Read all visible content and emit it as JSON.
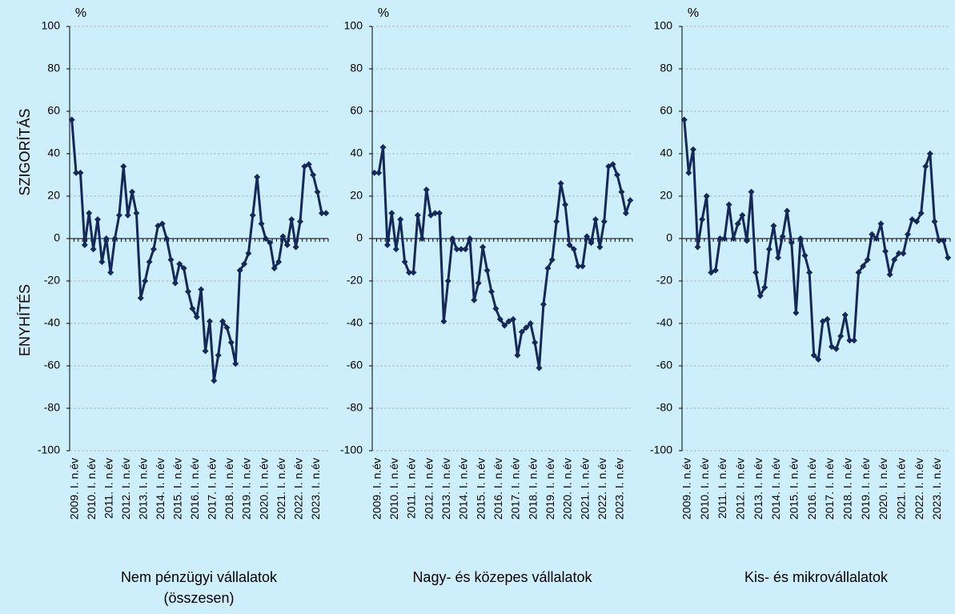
{
  "chart_data": [
    {
      "type": "line",
      "title": [
        "Nem pénzügyi vállalatok",
        "(összesen)"
      ],
      "y_unit": "%",
      "ylabel_top": "SZIGORÍTÁS",
      "ylabel_bottom": "ENYHÍTÉS",
      "categories": [
        "2009. I. n.év",
        null,
        null,
        null,
        "2010. I. n.év",
        null,
        null,
        null,
        "2011. I. n.év",
        null,
        null,
        null,
        "2012. I. n.év",
        null,
        null,
        null,
        "2013. I. n.év",
        null,
        null,
        null,
        "2014. I. n.év",
        null,
        null,
        null,
        "2015. I. n.év",
        null,
        null,
        null,
        "2016. I. n.év",
        null,
        null,
        null,
        "2017. I. n.év",
        null,
        null,
        null,
        "2018. I. n.év",
        null,
        null,
        null,
        "2019. I. n.év",
        null,
        null,
        null,
        "2020. I. n.év",
        null,
        null,
        null,
        "2021. I. n.év",
        null,
        null,
        null,
        "2022. I. n.év",
        null,
        null,
        null,
        "2023. I. n.év",
        null,
        null,
        null
      ],
      "values": [
        56,
        31,
        31,
        -3,
        12,
        -5,
        9,
        -11,
        0,
        -16,
        0,
        11,
        34,
        11,
        22,
        12,
        -28,
        -20,
        -11,
        -5,
        6,
        7,
        0,
        -10,
        -21,
        -12,
        -14,
        -25,
        -33,
        -37,
        -24,
        -53,
        -39,
        -67,
        -55,
        -39,
        -42,
        -49,
        -59,
        -15,
        -12,
        -7,
        11,
        29,
        7,
        0,
        -2,
        -14,
        -11,
        1,
        -3,
        9,
        -4,
        8,
        34,
        35,
        30,
        22,
        12,
        12
      ],
      "color": "#14285a",
      "ylim": [
        -100,
        100
      ],
      "yticks": [
        -100,
        -80,
        -60,
        -40,
        -20,
        0,
        20,
        40,
        60,
        80,
        100
      ],
      "grid": true
    },
    {
      "type": "line",
      "title": [
        "Nagy- és közepes vállalatok"
      ],
      "y_unit": "%",
      "categories": [
        "2009. I. n.év",
        null,
        null,
        null,
        "2010. I. n.év",
        null,
        null,
        null,
        "2011. I. n.év",
        null,
        null,
        null,
        "2012. I. n.év",
        null,
        null,
        null,
        "2013. I. n.év",
        null,
        null,
        null,
        "2014. I. n.év",
        null,
        null,
        null,
        "2015. I. n.év",
        null,
        null,
        null,
        "2016. I. n.év",
        null,
        null,
        null,
        "2017. I. n.év",
        null,
        null,
        null,
        "2018. I. n.év",
        null,
        null,
        null,
        "2019. I. n.év",
        null,
        null,
        null,
        "2020. I. n.év",
        null,
        null,
        null,
        "2021. I. n.év",
        null,
        null,
        null,
        "2022. I. n.év",
        null,
        null,
        null,
        "2023. I. n.év",
        null,
        null,
        null
      ],
      "values": [
        31,
        31,
        43,
        -3,
        12,
        -5,
        9,
        -11,
        -16,
        -16,
        11,
        0,
        23,
        11,
        12,
        12,
        -39,
        -20,
        0,
        -5,
        -5,
        -5,
        0,
        -29,
        -21,
        -4,
        -15,
        -25,
        -33,
        -38,
        -41,
        -39,
        -38,
        -55,
        -44,
        -42,
        -40,
        -49,
        -61,
        -31,
        -14,
        -10,
        8,
        26,
        16,
        -3,
        -5,
        -13,
        -13,
        1,
        -2,
        9,
        -4,
        8,
        34,
        35,
        30,
        22,
        12,
        18
      ],
      "color": "#14285a",
      "ylim": [
        -100,
        100
      ],
      "yticks": [
        -100,
        -80,
        -60,
        -40,
        -20,
        0,
        20,
        40,
        60,
        80,
        100
      ],
      "grid": true
    },
    {
      "type": "line",
      "title": [
        "Kis- és mikrovállalatok"
      ],
      "y_unit": "%",
      "categories": [
        "2009. I. n.év",
        null,
        null,
        null,
        "2010. I. n.év",
        null,
        null,
        null,
        "2011. I. n.év",
        null,
        null,
        null,
        "2012. I. n.év",
        null,
        null,
        null,
        "2013. I. n.év",
        null,
        null,
        null,
        "2014. I. n.év",
        null,
        null,
        null,
        "2015. I. n.év",
        null,
        null,
        null,
        "2016. I. n.év",
        null,
        null,
        null,
        "2017. I. n.év",
        null,
        null,
        null,
        "2018. I. n.év",
        null,
        null,
        null,
        "2019. I. n.év",
        null,
        null,
        null,
        "2020. I. n.év",
        null,
        null,
        null,
        "2021. I. n.év",
        null,
        null,
        null,
        "2022. I. n.év",
        null,
        null,
        null,
        "2023. I. n.év",
        null,
        null,
        null
      ],
      "values": [
        56,
        31,
        42,
        -4,
        9,
        20,
        -16,
        -15,
        0,
        0,
        16,
        0,
        7,
        11,
        -1,
        22,
        -16,
        -27,
        -23,
        -5,
        6,
        -9,
        1,
        13,
        -2,
        -35,
        0,
        -8,
        -16,
        -55,
        -57,
        -39,
        -38,
        -51,
        -52,
        -46,
        -36,
        -48,
        -48,
        -16,
        -13,
        -10,
        2,
        0,
        7,
        -6,
        -17,
        -10,
        -7,
        -7,
        2,
        9,
        8,
        12,
        34,
        40,
        8,
        -1,
        -1,
        -9
      ],
      "color": "#14285a",
      "ylim": [
        -100,
        100
      ],
      "yticks": [
        -100,
        -80,
        -60,
        -40,
        -20,
        0,
        20,
        40,
        60,
        80,
        100
      ],
      "grid": true
    }
  ]
}
